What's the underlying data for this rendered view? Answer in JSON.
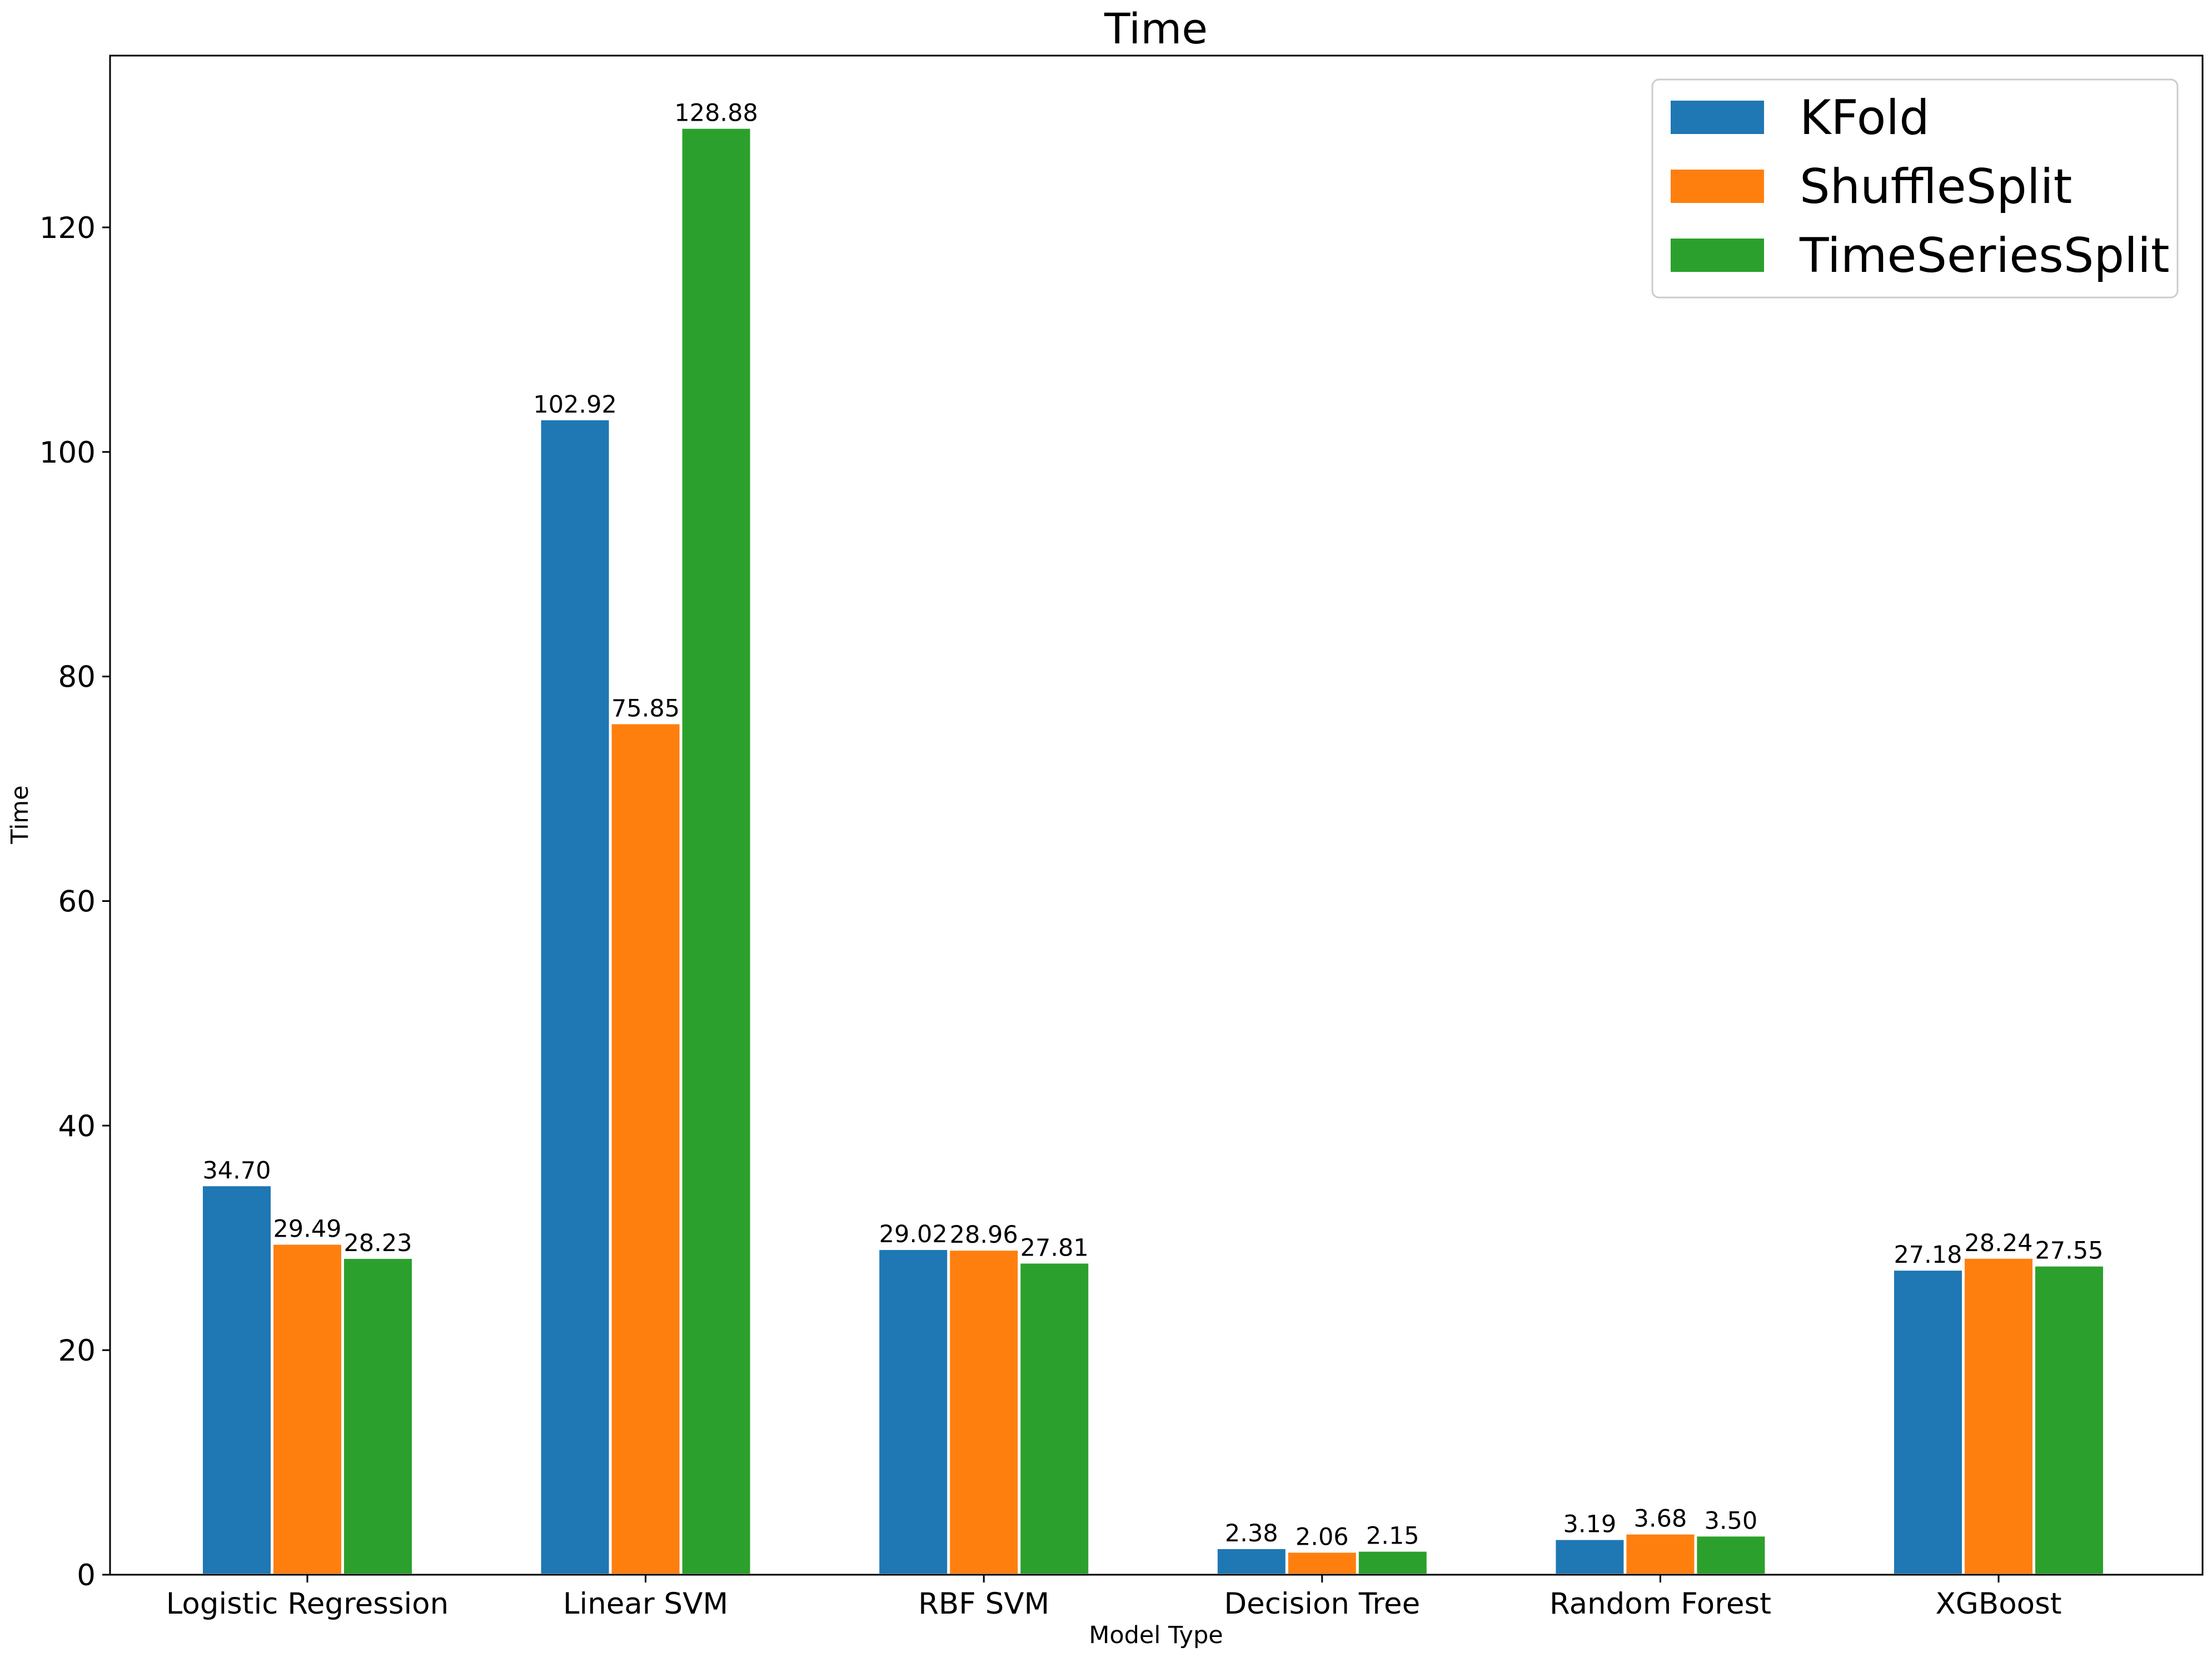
{
  "chart_data": {
    "type": "bar",
    "title": "Time",
    "xlabel": "Model Type",
    "ylabel": "Time",
    "categories": [
      "Logistic Regression",
      "Linear SVM",
      "RBF SVM",
      "Decision Tree",
      "Random Forest",
      "XGBoost"
    ],
    "series": [
      {
        "name": "KFold",
        "color": "#1f77b4",
        "values": [
          34.7,
          102.92,
          29.02,
          2.38,
          3.19,
          27.18
        ],
        "labels": [
          "34.70",
          "102.92",
          "29.02",
          "2.38",
          "3.19",
          "27.18"
        ]
      },
      {
        "name": "ShuffleSplit",
        "color": "#ff7f0e",
        "values": [
          29.49,
          75.85,
          28.96,
          2.06,
          3.68,
          28.24
        ],
        "labels": [
          "29.49",
          "75.85",
          "28.96",
          "2.06",
          "3.68",
          "28.24"
        ]
      },
      {
        "name": "TimeSeriesSplit",
        "color": "#2ca02c",
        "values": [
          28.23,
          128.88,
          27.81,
          2.15,
          3.5,
          27.55
        ],
        "labels": [
          "28.23",
          "128.88",
          "27.81",
          "2.15",
          "3.50",
          "27.55"
        ]
      }
    ],
    "ylim": [
      0,
      135.3
    ],
    "yticks": [
      0,
      20,
      40,
      60,
      80,
      100,
      120
    ],
    "grid": false,
    "legend_position": "top-right"
  }
}
